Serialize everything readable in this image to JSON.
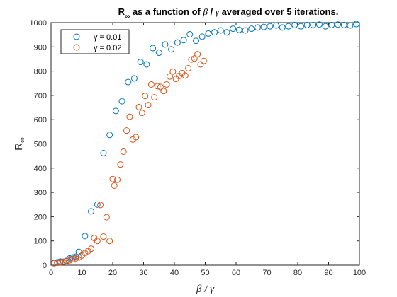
{
  "chart_data": {
    "type": "scatter",
    "title": {
      "pre": "R",
      "sub": "∞",
      "mid": " as a function of ",
      "beta": "β",
      "slash": " / ",
      "gamma": "γ",
      "post": " averaged over 5 iterations."
    },
    "xlabel": "β / γ",
    "ylabel": {
      "main": "R",
      "sub": "∞"
    },
    "xlim": [
      0,
      100
    ],
    "ylim": [
      0,
      1000
    ],
    "xticks": [
      "0",
      "10",
      "20",
      "30",
      "40",
      "50",
      "60",
      "70",
      "80",
      "90",
      "100"
    ],
    "yticks": [
      "0",
      "100",
      "200",
      "300",
      "400",
      "500",
      "600",
      "700",
      "800",
      "900",
      "1000"
    ],
    "grid": false,
    "legend_position": "top-left",
    "marker": "open-circle",
    "series": [
      {
        "name": "γ = 0.01",
        "color": "#0072BD",
        "points": [
          [
            1,
            10
          ],
          [
            2,
            12
          ],
          [
            3,
            15
          ],
          [
            4,
            14
          ],
          [
            5,
            18
          ],
          [
            6,
            28
          ],
          [
            7,
            32
          ],
          [
            8,
            35
          ],
          [
            9,
            55
          ],
          [
            11,
            120
          ],
          [
            13,
            222
          ],
          [
            15,
            250
          ],
          [
            17,
            462
          ],
          [
            19,
            537
          ],
          [
            21,
            636
          ],
          [
            23,
            676
          ],
          [
            25,
            755
          ],
          [
            27,
            770
          ],
          [
            29,
            838
          ],
          [
            31,
            828
          ],
          [
            33,
            895
          ],
          [
            35,
            876
          ],
          [
            37,
            910
          ],
          [
            39,
            890
          ],
          [
            41,
            918
          ],
          [
            43,
            928
          ],
          [
            45,
            952
          ],
          [
            47,
            925
          ],
          [
            49,
            942
          ],
          [
            51,
            955
          ],
          [
            53,
            960
          ],
          [
            55,
            968
          ],
          [
            57,
            960
          ],
          [
            59,
            975
          ],
          [
            61,
            970
          ],
          [
            63,
            968
          ],
          [
            65,
            975
          ],
          [
            67,
            980
          ],
          [
            69,
            982
          ],
          [
            71,
            985
          ],
          [
            73,
            988
          ],
          [
            75,
            980
          ],
          [
            77,
            985
          ],
          [
            79,
            990
          ],
          [
            81,
            985
          ],
          [
            83,
            990
          ],
          [
            85,
            990
          ],
          [
            87,
            992
          ],
          [
            89,
            985
          ],
          [
            91,
            990
          ],
          [
            93,
            992
          ],
          [
            95,
            990
          ],
          [
            97,
            988
          ],
          [
            99,
            994
          ]
        ]
      },
      {
        "name": "γ = 0.02",
        "color": "#D95319",
        "points": [
          [
            1,
            8
          ],
          [
            2,
            10
          ],
          [
            3,
            12
          ],
          [
            4,
            14
          ],
          [
            5,
            16
          ],
          [
            6,
            20
          ],
          [
            7,
            25
          ],
          [
            8,
            28
          ],
          [
            9,
            32
          ],
          [
            10,
            40
          ],
          [
            11,
            50
          ],
          [
            12,
            58
          ],
          [
            13,
            68
          ],
          [
            14,
            112
          ],
          [
            15,
            100
          ],
          [
            16,
            248
          ],
          [
            17,
            118
          ],
          [
            18,
            198
          ],
          [
            19,
            100
          ],
          [
            20,
            355
          ],
          [
            20.5,
            328
          ],
          [
            21.5,
            352
          ],
          [
            22.5,
            415
          ],
          [
            23.5,
            468
          ],
          [
            24.5,
            555
          ],
          [
            25.5,
            612
          ],
          [
            26.5,
            518
          ],
          [
            27.5,
            528
          ],
          [
            28.5,
            652
          ],
          [
            29.5,
            628
          ],
          [
            30.5,
            698
          ],
          [
            31.5,
            660
          ],
          [
            32.5,
            745
          ],
          [
            33.5,
            692
          ],
          [
            34.5,
            738
          ],
          [
            35.5,
            735
          ],
          [
            36.5,
            718
          ],
          [
            37.5,
            745
          ],
          [
            38.5,
            778
          ],
          [
            39.5,
            798
          ],
          [
            40.5,
            768
          ],
          [
            41.5,
            780
          ],
          [
            42.5,
            792
          ],
          [
            43.5,
            782
          ],
          [
            44.5,
            812
          ],
          [
            45.5,
            848
          ],
          [
            46.5,
            852
          ],
          [
            47.5,
            870
          ],
          [
            48.5,
            828
          ],
          [
            49.5,
            842
          ]
        ]
      }
    ]
  }
}
